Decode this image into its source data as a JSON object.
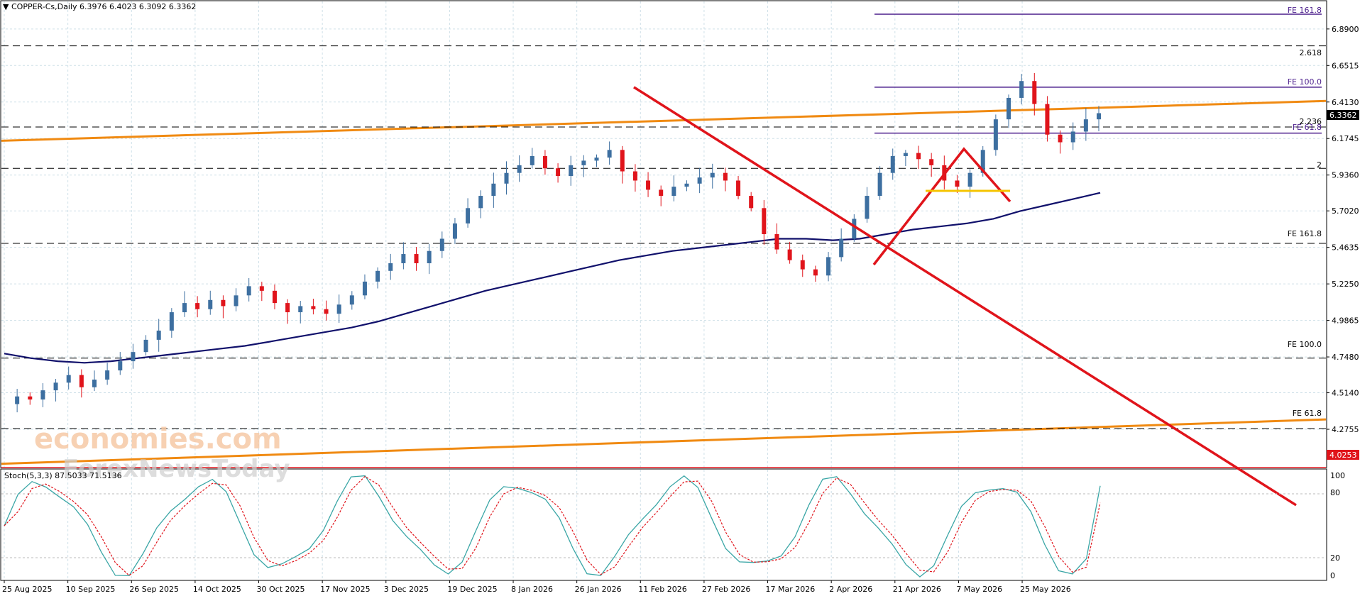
{
  "header": {
    "triangle": "▼",
    "title": "COPPER-Cs,Daily  6.3976 6.4023 6.3092 6.3362"
  },
  "watermark": {
    "line1": "economies.com",
    "line2": "ForexNewsToday"
  },
  "price_axis": {
    "ticks": [
      "6.8900",
      "6.6515",
      "6.4130",
      "6.1745",
      "5.9360",
      "5.7020",
      "5.4635",
      "5.2250",
      "4.9865",
      "4.7480",
      "4.5140",
      "4.2755"
    ],
    "current_price": "6.3362",
    "red_level": "4.0253"
  },
  "level_labels": {
    "fe1618_top": "FE 161.8",
    "ext_2618": "2.618",
    "fe100_top": "FE 100.0",
    "ext_2236": "2.236",
    "fe618_top": "FE 61.8",
    "ext_2": "2",
    "fe1618_mid": "FE 161.8",
    "fe100_low": "FE 100.0",
    "fe618_low": "FE 61.8"
  },
  "stoch": {
    "label": "Stoch(5,3,3) 87.5033 71.5136",
    "ticks": [
      "100",
      "80",
      "20",
      "0"
    ]
  },
  "date_axis": [
    "25 Aug 2025",
    "10 Sep 2025",
    "26 Sep 2025",
    "14 Oct 2025",
    "30 Oct 2025",
    "17 Nov 2025",
    "3 Dec 2025",
    "19 Dec 2025",
    "8 Jan 2026",
    "26 Jan 2026",
    "11 Feb 2026",
    "27 Feb 2026",
    "17 Mar 2026",
    "2 Apr 2026",
    "21 Apr 2026",
    "7 May 2026",
    "25 May 2026"
  ],
  "colors": {
    "bull": "#3d6fa0",
    "bear": "#e0141b",
    "ma": "#10106b",
    "channel": "#f08a12",
    "trend": "#e0141b",
    "fe_line": "#4b1e8c",
    "stoch_main": "#3aa6a6",
    "stoch_signal": "#e0141b",
    "yellow": "#f5c400"
  },
  "chart_data": {
    "type": "candlestick",
    "symbol": "COPPER-Cs",
    "timeframe": "Daily",
    "ohlc_header": {
      "open": 6.3976,
      "high": 6.4023,
      "low": 6.3092,
      "close": 6.3362
    },
    "ylim": [
      4.03,
      7.07
    ],
    "dates": [
      "25 Aug 2025",
      "10 Sep 2025",
      "26 Sep 2025",
      "14 Oct 2025",
      "30 Oct 2025",
      "17 Nov 2025",
      "3 Dec 2025",
      "19 Dec 2025",
      "8 Jan 2026",
      "26 Jan 2026",
      "11 Feb 2026",
      "27 Feb 2026",
      "17 Mar 2026",
      "2 Apr 2026",
      "21 Apr 2026",
      "7 May 2026",
      "25 May 2026"
    ],
    "close_path": [
      4.44,
      4.49,
      4.47,
      4.53,
      4.58,
      4.63,
      4.55,
      4.6,
      4.66,
      4.72,
      4.78,
      4.86,
      4.92,
      5.04,
      5.1,
      5.06,
      5.12,
      5.08,
      5.15,
      5.21,
      5.18,
      5.1,
      5.04,
      5.08,
      5.06,
      5.03,
      5.09,
      5.15,
      5.24,
      5.31,
      5.36,
      5.42,
      5.36,
      5.44,
      5.52,
      5.62,
      5.72,
      5.8,
      5.88,
      5.95,
      6.0,
      6.06,
      5.98,
      5.93,
      6.0,
      6.03,
      6.05,
      6.1,
      5.96,
      5.9,
      5.84,
      5.8,
      5.86,
      5.88,
      5.92,
      5.95,
      5.9,
      5.8,
      5.72,
      5.55,
      5.45,
      5.38,
      5.32,
      5.28,
      5.4,
      5.52,
      5.65,
      5.8,
      5.95,
      6.06,
      6.08,
      6.04,
      6.0,
      5.9,
      5.86,
      5.95,
      6.1,
      6.3,
      6.44,
      6.55,
      6.4,
      6.2,
      6.15,
      6.22,
      6.3,
      6.34
    ],
    "moving_average": [
      4.77,
      4.74,
      4.72,
      4.71,
      4.72,
      4.74,
      4.76,
      4.78,
      4.8,
      4.82,
      4.85,
      4.88,
      4.91,
      4.94,
      4.98,
      5.03,
      5.08,
      5.13,
      5.18,
      5.22,
      5.26,
      5.3,
      5.34,
      5.38,
      5.41,
      5.44,
      5.46,
      5.48,
      5.5,
      5.52,
      5.52,
      5.51,
      5.52,
      5.55,
      5.58,
      5.6,
      5.62,
      5.65,
      5.7,
      5.74,
      5.78,
      5.82
    ],
    "levels": {
      "fe161_8_top": 7.18,
      "ext_2_618": 6.78,
      "fe100_top": 6.51,
      "ext_2_236": 6.25,
      "fe61_8_top": 6.21,
      "ext_2": 5.98,
      "fe161_8_mid": 5.49,
      "fe100_low": 4.74,
      "fe61_8_low": 4.28,
      "red_support": 4.0253
    },
    "channel": {
      "upper": [
        6.16,
        6.42
      ],
      "lower": [
        4.05,
        4.34
      ]
    },
    "downtrend": [
      6.51,
      3.78
    ],
    "stoch": {
      "k": 87.5033,
      "d": 71.5136,
      "levels": [
        80,
        20
      ]
    }
  }
}
